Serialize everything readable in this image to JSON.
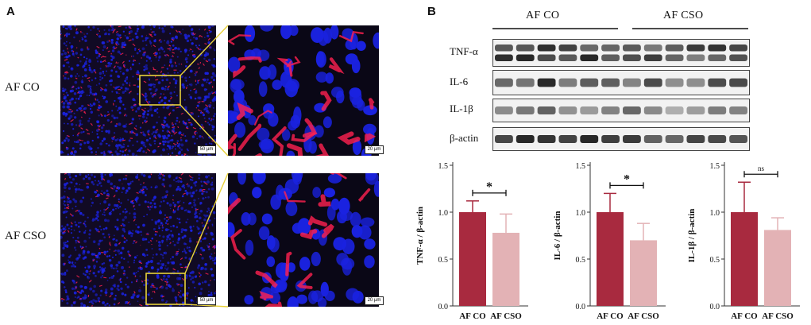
{
  "panels": {
    "A": "A",
    "B": "B"
  },
  "microscopy": {
    "rows": [
      {
        "label": "AF CO",
        "scale_overview": "50 µm",
        "scale_zoom": "20 µm"
      },
      {
        "label": "AF CSO",
        "scale_overview": "50 µm",
        "scale_zoom": "20 µm"
      }
    ]
  },
  "western_blot": {
    "groups": [
      "AF CO",
      "AF CSO"
    ],
    "proteins": [
      "TNF-α",
      "IL-6",
      "IL-1β",
      "β-actin"
    ]
  },
  "colors": {
    "co": "#a82a3f",
    "cso": "#e3b2b5",
    "nucleus": "#1a22e0",
    "marker": "#ff2050",
    "zoom_box": "#e8d23a"
  },
  "chart_data": [
    {
      "type": "bar",
      "categories": [
        "AF CO",
        "AF CSO"
      ],
      "values": [
        1.0,
        0.78
      ],
      "errors": [
        0.12,
        0.2
      ],
      "ylabel": "TNF-α / β-actin",
      "ylim": [
        0,
        1.5
      ],
      "yticks": [
        "0.0",
        "0.5",
        "1.0",
        "1.5"
      ],
      "significance": "*"
    },
    {
      "type": "bar",
      "categories": [
        "AF CO",
        "AF CSO"
      ],
      "values": [
        1.0,
        0.7
      ],
      "errors": [
        0.2,
        0.18
      ],
      "ylabel": "IL-6 / β-actin",
      "ylim": [
        0,
        1.5
      ],
      "yticks": [
        "0.0",
        "0.5",
        "1.0",
        "1.5"
      ],
      "significance": "*"
    },
    {
      "type": "bar",
      "categories": [
        "AF CO",
        "AF CSO"
      ],
      "values": [
        1.0,
        0.81
      ],
      "errors": [
        0.32,
        0.13
      ],
      "ylabel": "IL-1β / β-actin",
      "ylim": [
        0,
        1.5
      ],
      "yticks": [
        "0.0",
        "0.5",
        "1.0",
        "1.5"
      ],
      "significance": "ns"
    }
  ]
}
